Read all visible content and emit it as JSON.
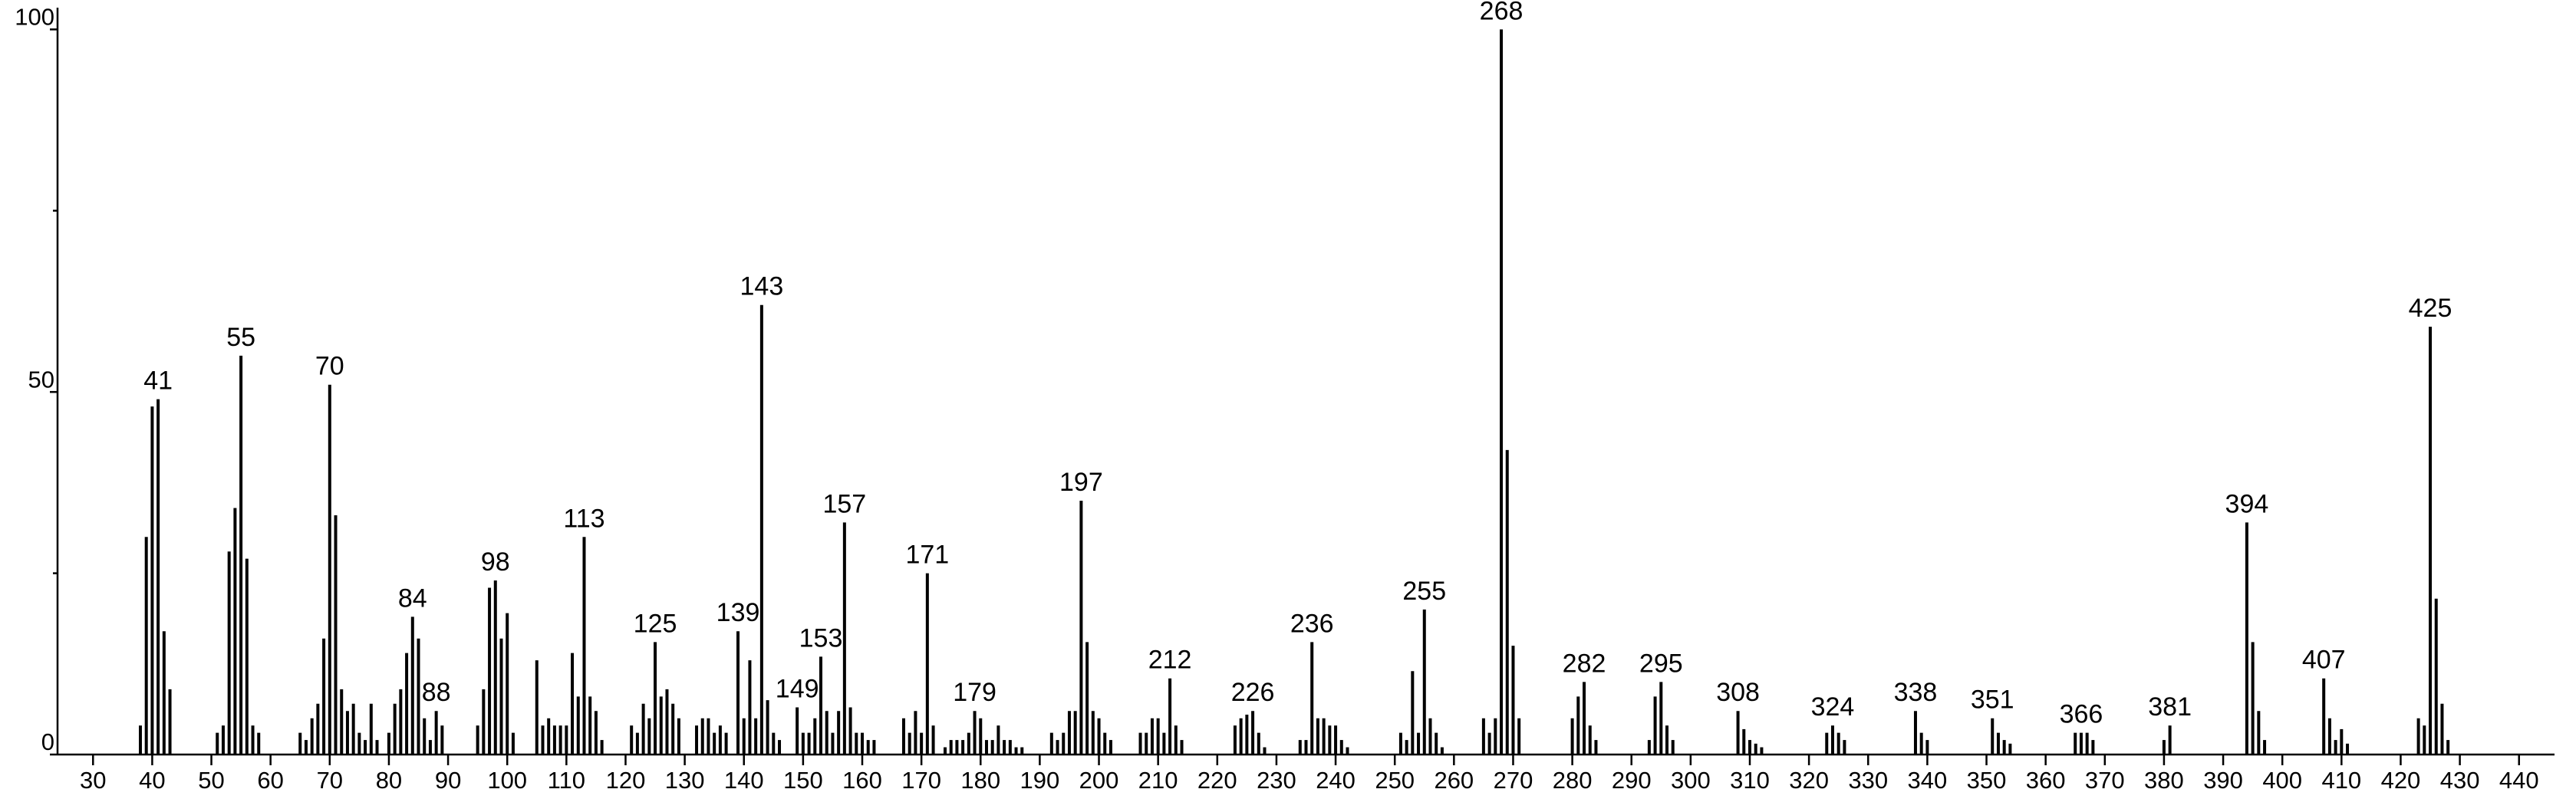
{
  "chart_data": {
    "type": "stick",
    "x": [
      38,
      39,
      40,
      41,
      42,
      43,
      51,
      52,
      53,
      54,
      55,
      56,
      57,
      58,
      65,
      66,
      67,
      68,
      69,
      70,
      71,
      72,
      73,
      74,
      75,
      76,
      77,
      78,
      80,
      81,
      82,
      83,
      84,
      85,
      86,
      87,
      88,
      89,
      95,
      96,
      97,
      98,
      99,
      100,
      101,
      105,
      106,
      107,
      108,
      109,
      110,
      111,
      112,
      113,
      114,
      115,
      116,
      121,
      122,
      123,
      124,
      125,
      126,
      127,
      128,
      129,
      132,
      133,
      134,
      135,
      136,
      137,
      139,
      140,
      141,
      142,
      143,
      144,
      145,
      146,
      149,
      150,
      151,
      152,
      153,
      154,
      155,
      156,
      157,
      158,
      159,
      160,
      161,
      162,
      167,
      168,
      169,
      170,
      171,
      172,
      174,
      175,
      176,
      177,
      178,
      179,
      180,
      181,
      182,
      183,
      184,
      185,
      186,
      187,
      192,
      193,
      194,
      195,
      196,
      197,
      198,
      199,
      200,
      201,
      202,
      207,
      208,
      209,
      210,
      211,
      212,
      213,
      214,
      223,
      224,
      225,
      226,
      227,
      228,
      234,
      235,
      236,
      237,
      238,
      239,
      240,
      241,
      242,
      251,
      252,
      253,
      254,
      255,
      256,
      257,
      258,
      265,
      266,
      267,
      268,
      269,
      270,
      271,
      280,
      281,
      282,
      283,
      284,
      293,
      294,
      295,
      296,
      297,
      308,
      309,
      310,
      311,
      312,
      323,
      324,
      325,
      326,
      338,
      339,
      340,
      351,
      352,
      353,
      354,
      365,
      366,
      367,
      368,
      380,
      381,
      394,
      395,
      396,
      397,
      407,
      408,
      409,
      410,
      411,
      423,
      424,
      425,
      426,
      427,
      428
    ],
    "values": [
      4,
      30,
      48,
      49,
      17,
      9,
      3,
      4,
      28,
      34,
      55,
      27,
      4,
      3,
      3,
      2,
      5,
      7,
      16,
      51,
      33,
      9,
      6,
      7,
      3,
      2,
      7,
      2,
      3,
      7,
      9,
      14,
      19,
      16,
      5,
      2,
      6,
      4,
      4,
      9,
      23,
      24,
      16,
      19.5,
      3,
      13,
      4,
      5,
      4,
      4,
      4,
      14,
      8,
      30,
      8,
      6,
      2,
      4,
      3,
      7,
      5,
      15.5,
      8,
      9,
      7,
      5,
      4,
      5,
      5,
      3,
      4,
      3,
      17,
      5,
      13,
      5,
      62,
      7.5,
      3,
      2,
      6.5,
      3,
      3,
      5,
      13.5,
      6,
      3,
      6,
      32,
      6.5,
      3,
      3,
      2,
      2,
      5,
      3,
      6,
      3,
      25,
      4,
      1,
      2,
      2,
      2,
      3,
      6,
      5,
      2,
      2,
      4,
      2,
      2,
      1,
      1,
      3,
      2,
      3,
      6,
      6,
      35,
      15.5,
      6,
      5,
      3,
      2,
      3,
      3,
      5,
      5,
      3,
      10.5,
      4,
      2,
      4,
      5,
      5.5,
      6,
      3,
      1,
      2,
      2,
      15.5,
      5,
      5,
      4,
      4,
      2,
      1,
      3,
      2,
      11.5,
      3,
      20,
      5,
      3,
      1,
      5,
      3,
      5,
      100,
      42,
      15,
      5,
      5,
      8,
      10,
      4,
      2,
      2,
      8,
      10,
      4,
      2,
      6,
      3.5,
      2,
      1.5,
      1,
      3,
      4,
      3,
      2,
      6,
      3,
      2,
      5,
      3,
      2,
      1.5,
      3,
      3,
      3,
      2,
      2,
      4,
      32,
      15.5,
      6,
      2,
      10.5,
      5,
      2,
      3.5,
      1.5,
      5,
      4,
      59,
      21.5,
      7,
      2
    ],
    "annotations": [
      41,
      55,
      70,
      84,
      88,
      98,
      113,
      125,
      139,
      143,
      149,
      153,
      157,
      171,
      179,
      197,
      212,
      226,
      236,
      255,
      268,
      282,
      295,
      308,
      324,
      338,
      351,
      366,
      381,
      394,
      407,
      425
    ],
    "color": "#000000",
    "xlim": [
      24,
      446
    ],
    "xticks": [
      30,
      40,
      50,
      60,
      70,
      80,
      90,
      100,
      110,
      120,
      130,
      140,
      150,
      160,
      170,
      180,
      190,
      200,
      210,
      220,
      230,
      240,
      250,
      260,
      270,
      280,
      290,
      300,
      310,
      320,
      330,
      340,
      350,
      360,
      370,
      380,
      390,
      400,
      410,
      420,
      430,
      440
    ],
    "ylim": [
      0,
      103
    ],
    "yticks": [
      0,
      50,
      100
    ],
    "yminorticks": [
      25,
      75
    ]
  }
}
